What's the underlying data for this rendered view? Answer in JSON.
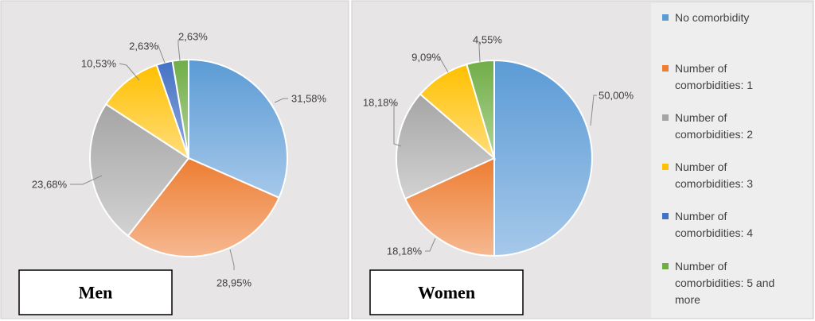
{
  "chart_data": [
    {
      "type": "pie",
      "label": "Men",
      "categories": [
        "No comorbidity",
        "Number of comorbidities: 1",
        "Number of comorbidities: 2",
        "Number of comorbidities: 3",
        "Number of comorbidities: 4",
        "Number of comorbidities: 5 and more"
      ],
      "values": [
        31.58,
        28.95,
        23.68,
        10.53,
        2.63,
        2.63
      ],
      "data_labels": [
        "31,58%",
        "28,95%",
        "23,68%",
        "10,53%",
        "2,63%",
        "2,63%"
      ]
    },
    {
      "type": "pie",
      "label": "Women",
      "categories": [
        "No comorbidity",
        "Number of comorbidities: 1",
        "Number of comorbidities: 2",
        "Number of comorbidities: 3",
        "Number of comorbidities: 4",
        "Number of comorbidities: 5 and more"
      ],
      "values": [
        50.0,
        18.18,
        18.18,
        9.09,
        0,
        4.55
      ],
      "data_labels": [
        "50,00%",
        "18,18%",
        "18,18%",
        "9,09%",
        "",
        "4,55%"
      ]
    }
  ],
  "legend": {
    "placement": "right",
    "entries": [
      {
        "lines": [
          "No comorbidity"
        ],
        "color": "#5b9bd5"
      },
      {
        "lines": [
          "Number of",
          "comorbidities: 1"
        ],
        "color": "#ed7d31"
      },
      {
        "lines": [
          "Number of",
          "comorbidities: 2"
        ],
        "color": "#a5a5a5"
      },
      {
        "lines": [
          "Number of",
          "comorbidities: 3"
        ],
        "color": "#ffc000"
      },
      {
        "lines": [
          "Number of",
          "comorbidities: 4"
        ],
        "color": "#4472c4"
      },
      {
        "lines": [
          "Number of",
          "comorbidities: 5 and",
          "more"
        ],
        "color": "#70ad47"
      }
    ]
  },
  "colors": {
    "no_comorbidity": "#5b9bd5",
    "comorbidities_1": "#ed7d31",
    "comorbidities_2": "#a5a5a5",
    "comorbidities_3": "#ffc000",
    "comorbidities_4": "#4472c4",
    "comorbidities_5_more": "#70ad47"
  }
}
